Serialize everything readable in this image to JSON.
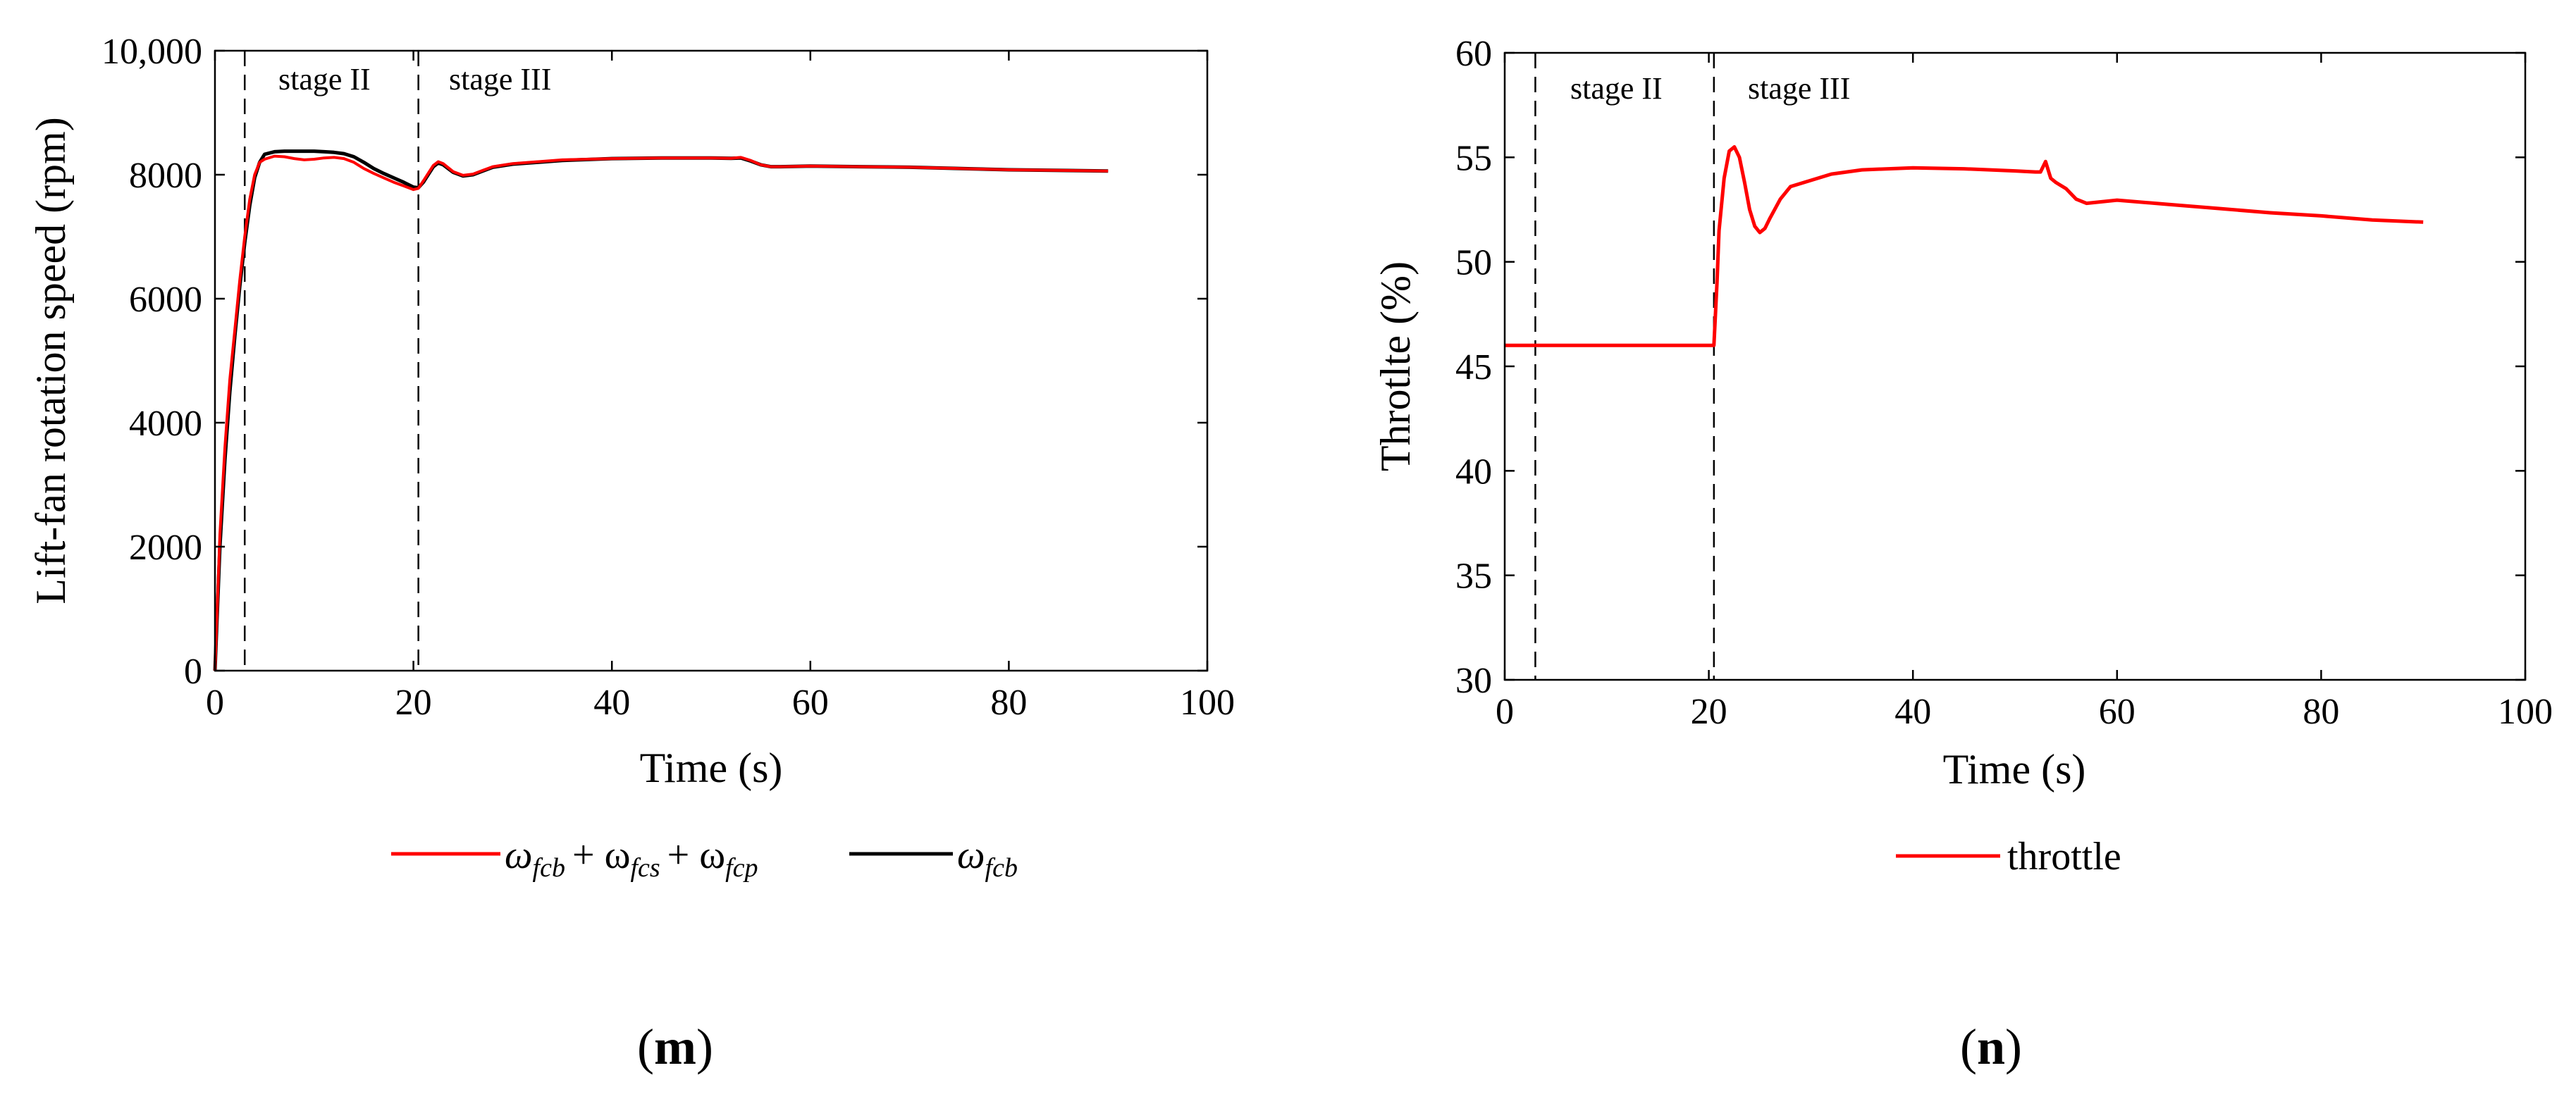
{
  "chart_data": [
    {
      "panel": "m",
      "type": "line",
      "xlabel": "Time (s)",
      "ylabel": "Lift-fan rotation speed (rpm)",
      "xlim": [
        0,
        100
      ],
      "ylim": [
        0,
        10000
      ],
      "x_ticks": [
        0,
        20,
        40,
        60,
        80,
        100
      ],
      "y_ticks": [
        0,
        2000,
        4000,
        6000,
        8000,
        10000
      ],
      "y_tick_labels": [
        "0",
        "2000",
        "4000",
        "6000",
        "8000",
        "10,000"
      ],
      "grid": false,
      "stage_lines": [
        {
          "x": 3,
          "label": "stage II"
        },
        {
          "x": 20.5,
          "label": "stage III"
        }
      ],
      "series": [
        {
          "name": "ωfcb + ωfcs + ωfcp",
          "color": "#ff0000",
          "x": [
            0,
            0.5,
            1,
            1.5,
            2,
            2.5,
            3,
            3.5,
            4,
            4.5,
            5,
            6,
            7,
            8,
            9,
            10,
            11,
            12,
            13,
            14,
            15,
            16,
            17,
            18,
            19,
            20,
            20.5,
            21,
            22,
            22.5,
            23,
            24,
            25,
            26,
            27,
            28,
            30,
            35,
            40,
            45,
            50,
            52,
            53,
            54,
            55,
            56,
            57,
            60,
            65,
            70,
            80,
            90
          ],
          "y": [
            0,
            2200,
            3600,
            4700,
            5500,
            6300,
            7000,
            7600,
            8000,
            8200,
            8250,
            8300,
            8290,
            8260,
            8240,
            8250,
            8270,
            8280,
            8260,
            8200,
            8100,
            8020,
            7950,
            7880,
            7820,
            7760,
            7780,
            7900,
            8150,
            8210,
            8180,
            8050,
            7990,
            8010,
            8070,
            8130,
            8180,
            8240,
            8260,
            8270,
            8270,
            8265,
            8280,
            8230,
            8160,
            8130,
            8130,
            8140,
            8130,
            8120,
            8080,
            8060
          ]
        },
        {
          "name": "ωfcb",
          "color": "#000000",
          "x": [
            0,
            0.5,
            1,
            1.5,
            2,
            2.5,
            3,
            3.5,
            4,
            4.5,
            5,
            6,
            7,
            8,
            9,
            10,
            11,
            12,
            13,
            14,
            15,
            16,
            17,
            18,
            19,
            20,
            20.5,
            21,
            22,
            22.5,
            23,
            24,
            25,
            26,
            27,
            28,
            30,
            35,
            40,
            45,
            50,
            52,
            53,
            54,
            55,
            56,
            57,
            60,
            65,
            70,
            80,
            90
          ],
          "y": [
            0,
            2000,
            3400,
            4500,
            5400,
            6200,
            6900,
            7500,
            7950,
            8200,
            8330,
            8370,
            8380,
            8380,
            8380,
            8380,
            8370,
            8360,
            8340,
            8290,
            8200,
            8100,
            8020,
            7950,
            7880,
            7800,
            7790,
            7880,
            8130,
            8190,
            8160,
            8040,
            7980,
            8000,
            8060,
            8120,
            8170,
            8230,
            8260,
            8270,
            8270,
            8265,
            8270,
            8220,
            8160,
            8130,
            8130,
            8140,
            8130,
            8120,
            8080,
            8060
          ]
        }
      ],
      "legend": {
        "placement": "bottom-center",
        "entries": [
          {
            "sym": "ω",
            "sub": "fcb",
            "extra": [
              [
                "+ ω",
                "fcs"
              ],
              [
                "+ ω",
                "fcp"
              ]
            ]
          },
          {
            "sym": "ω",
            "sub": "fcb",
            "extra": []
          }
        ]
      }
    },
    {
      "panel": "n",
      "type": "line",
      "xlabel": "Time (s)",
      "ylabel": "Throtlte (%)",
      "xlim": [
        0,
        100
      ],
      "ylim": [
        30,
        60
      ],
      "x_ticks": [
        0,
        20,
        40,
        60,
        80,
        100
      ],
      "y_ticks": [
        30,
        35,
        40,
        45,
        50,
        55,
        60
      ],
      "y_tick_labels": [
        "30",
        "35",
        "40",
        "45",
        "50",
        "55",
        "60"
      ],
      "grid": false,
      "stage_lines": [
        {
          "x": 3,
          "label": "stage II"
        },
        {
          "x": 20.5,
          "label": "stage III"
        }
      ],
      "series": [
        {
          "name": "throttle",
          "color": "#ff0000",
          "x": [
            0,
            3,
            10,
            20.5,
            20.8,
            21,
            21.5,
            22,
            22.5,
            23,
            23.5,
            24,
            24.5,
            25,
            25.5,
            26,
            27,
            28,
            30,
            32,
            35,
            40,
            45,
            50,
            52,
            52.5,
            53,
            53.5,
            54,
            55,
            56,
            57,
            58,
            60,
            65,
            70,
            75,
            80,
            85,
            90
          ],
          "y": [
            46,
            46,
            46,
            46,
            49,
            51.5,
            54,
            55.3,
            55.5,
            55,
            53.8,
            52.5,
            51.7,
            51.4,
            51.6,
            52.1,
            53,
            53.6,
            53.9,
            54.2,
            54.4,
            54.5,
            54.45,
            54.35,
            54.3,
            54.3,
            54.8,
            54.0,
            53.8,
            53.5,
            53.0,
            52.8,
            52.85,
            52.95,
            52.75,
            52.55,
            52.35,
            52.2,
            52.0,
            51.9
          ]
        }
      ],
      "legend": {
        "placement": "bottom-center",
        "entries": [
          {
            "label": "throttle"
          }
        ]
      }
    }
  ]
}
